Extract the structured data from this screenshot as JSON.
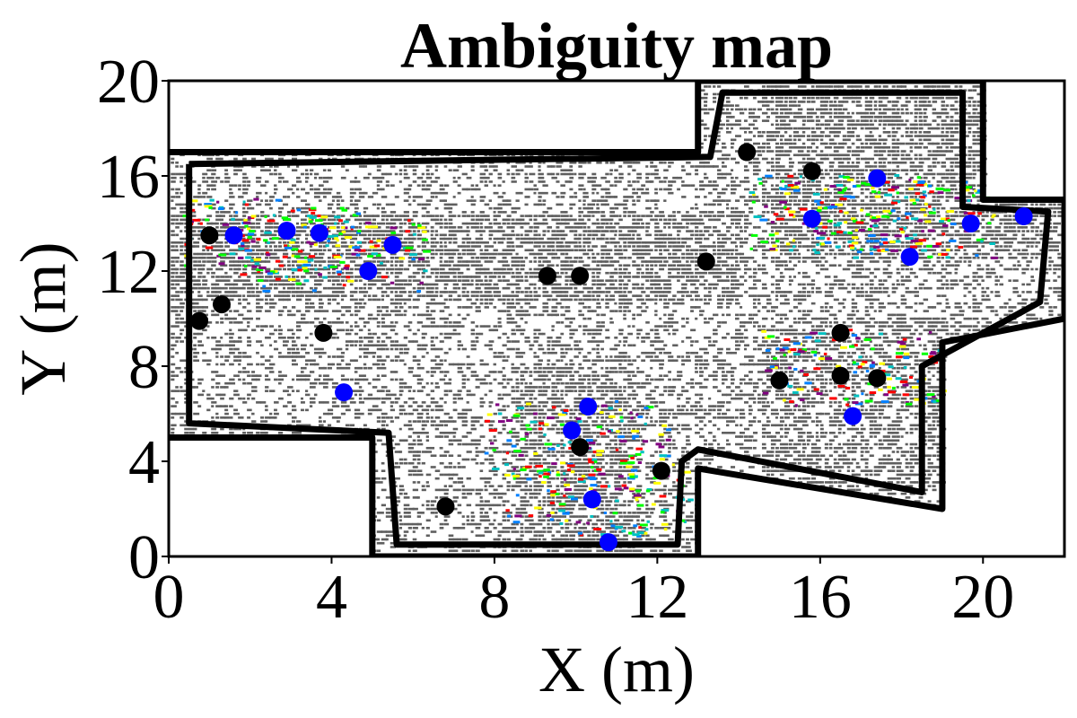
{
  "chart_data": {
    "type": "scatter",
    "title": "Ambiguity map",
    "xlabel": "X (m)",
    "ylabel": "Y (m)",
    "xlim": [
      0,
      22
    ],
    "ylim": [
      0,
      20
    ],
    "xticks": [
      0,
      4,
      8,
      12,
      16,
      20
    ],
    "yticks": [
      0,
      4,
      8,
      12,
      16,
      20
    ],
    "grid": false,
    "colors": {
      "wall": "#000000",
      "anchor_black": "#000000",
      "anchor_blue": "#0000ff",
      "ambiguity": "#5f5f5f",
      "speckle": [
        "#ff0000",
        "#ffff00",
        "#00ff00",
        "#0080ff",
        "#800080",
        "#00c0c0"
      ]
    },
    "walls": [
      {
        "name": "outer-wall",
        "points": [
          [
            0,
            17
          ],
          [
            13,
            17
          ],
          [
            13,
            20
          ],
          [
            20,
            20
          ],
          [
            20,
            15
          ],
          [
            22,
            15
          ],
          [
            22,
            10
          ],
          [
            19,
            9
          ],
          [
            19,
            2
          ],
          [
            13,
            3.7
          ],
          [
            13,
            0
          ],
          [
            5,
            0
          ],
          [
            5,
            5
          ],
          [
            0,
            5
          ]
        ]
      },
      {
        "name": "inner-wall",
        "points": [
          [
            0.5,
            16.5
          ],
          [
            13.3,
            16.8
          ],
          [
            13.6,
            19.5
          ],
          [
            19.5,
            19.5
          ],
          [
            19.5,
            14.7
          ],
          [
            21.6,
            14.5
          ],
          [
            21.4,
            10.7
          ],
          [
            18.5,
            8.0
          ],
          [
            18.5,
            2.7
          ],
          [
            13.0,
            4.5
          ],
          [
            12.6,
            4.0
          ],
          [
            12.5,
            0.5
          ],
          [
            5.6,
            0.5
          ],
          [
            5.4,
            5.2
          ],
          [
            0.5,
            5.6
          ],
          [
            0.5,
            16.5
          ]
        ]
      }
    ],
    "series": [
      {
        "marker": "black",
        "x": [
          1.0,
          1.3,
          0.75,
          3.8,
          9.3,
          10.1,
          13.2,
          14.2,
          15.8,
          16.5,
          15.0,
          16.5,
          17.4,
          10.1,
          12.1,
          6.8
        ],
        "y": [
          13.5,
          10.6,
          9.9,
          9.4,
          11.8,
          11.8,
          12.4,
          17.0,
          16.2,
          9.4,
          7.4,
          7.6,
          7.5,
          4.6,
          3.6,
          2.1
        ]
      },
      {
        "marker": "blue",
        "x": [
          1.6,
          2.9,
          3.7,
          5.5,
          4.9,
          4.3,
          15.8,
          17.4,
          18.2,
          19.7,
          21.0,
          16.8,
          10.3,
          9.9,
          10.4,
          10.8
        ],
        "y": [
          13.5,
          13.7,
          13.6,
          13.1,
          12.0,
          6.9,
          14.2,
          15.9,
          12.6,
          14.0,
          14.3,
          5.9,
          6.3,
          5.3,
          2.4,
          0.6
        ]
      }
    ]
  }
}
